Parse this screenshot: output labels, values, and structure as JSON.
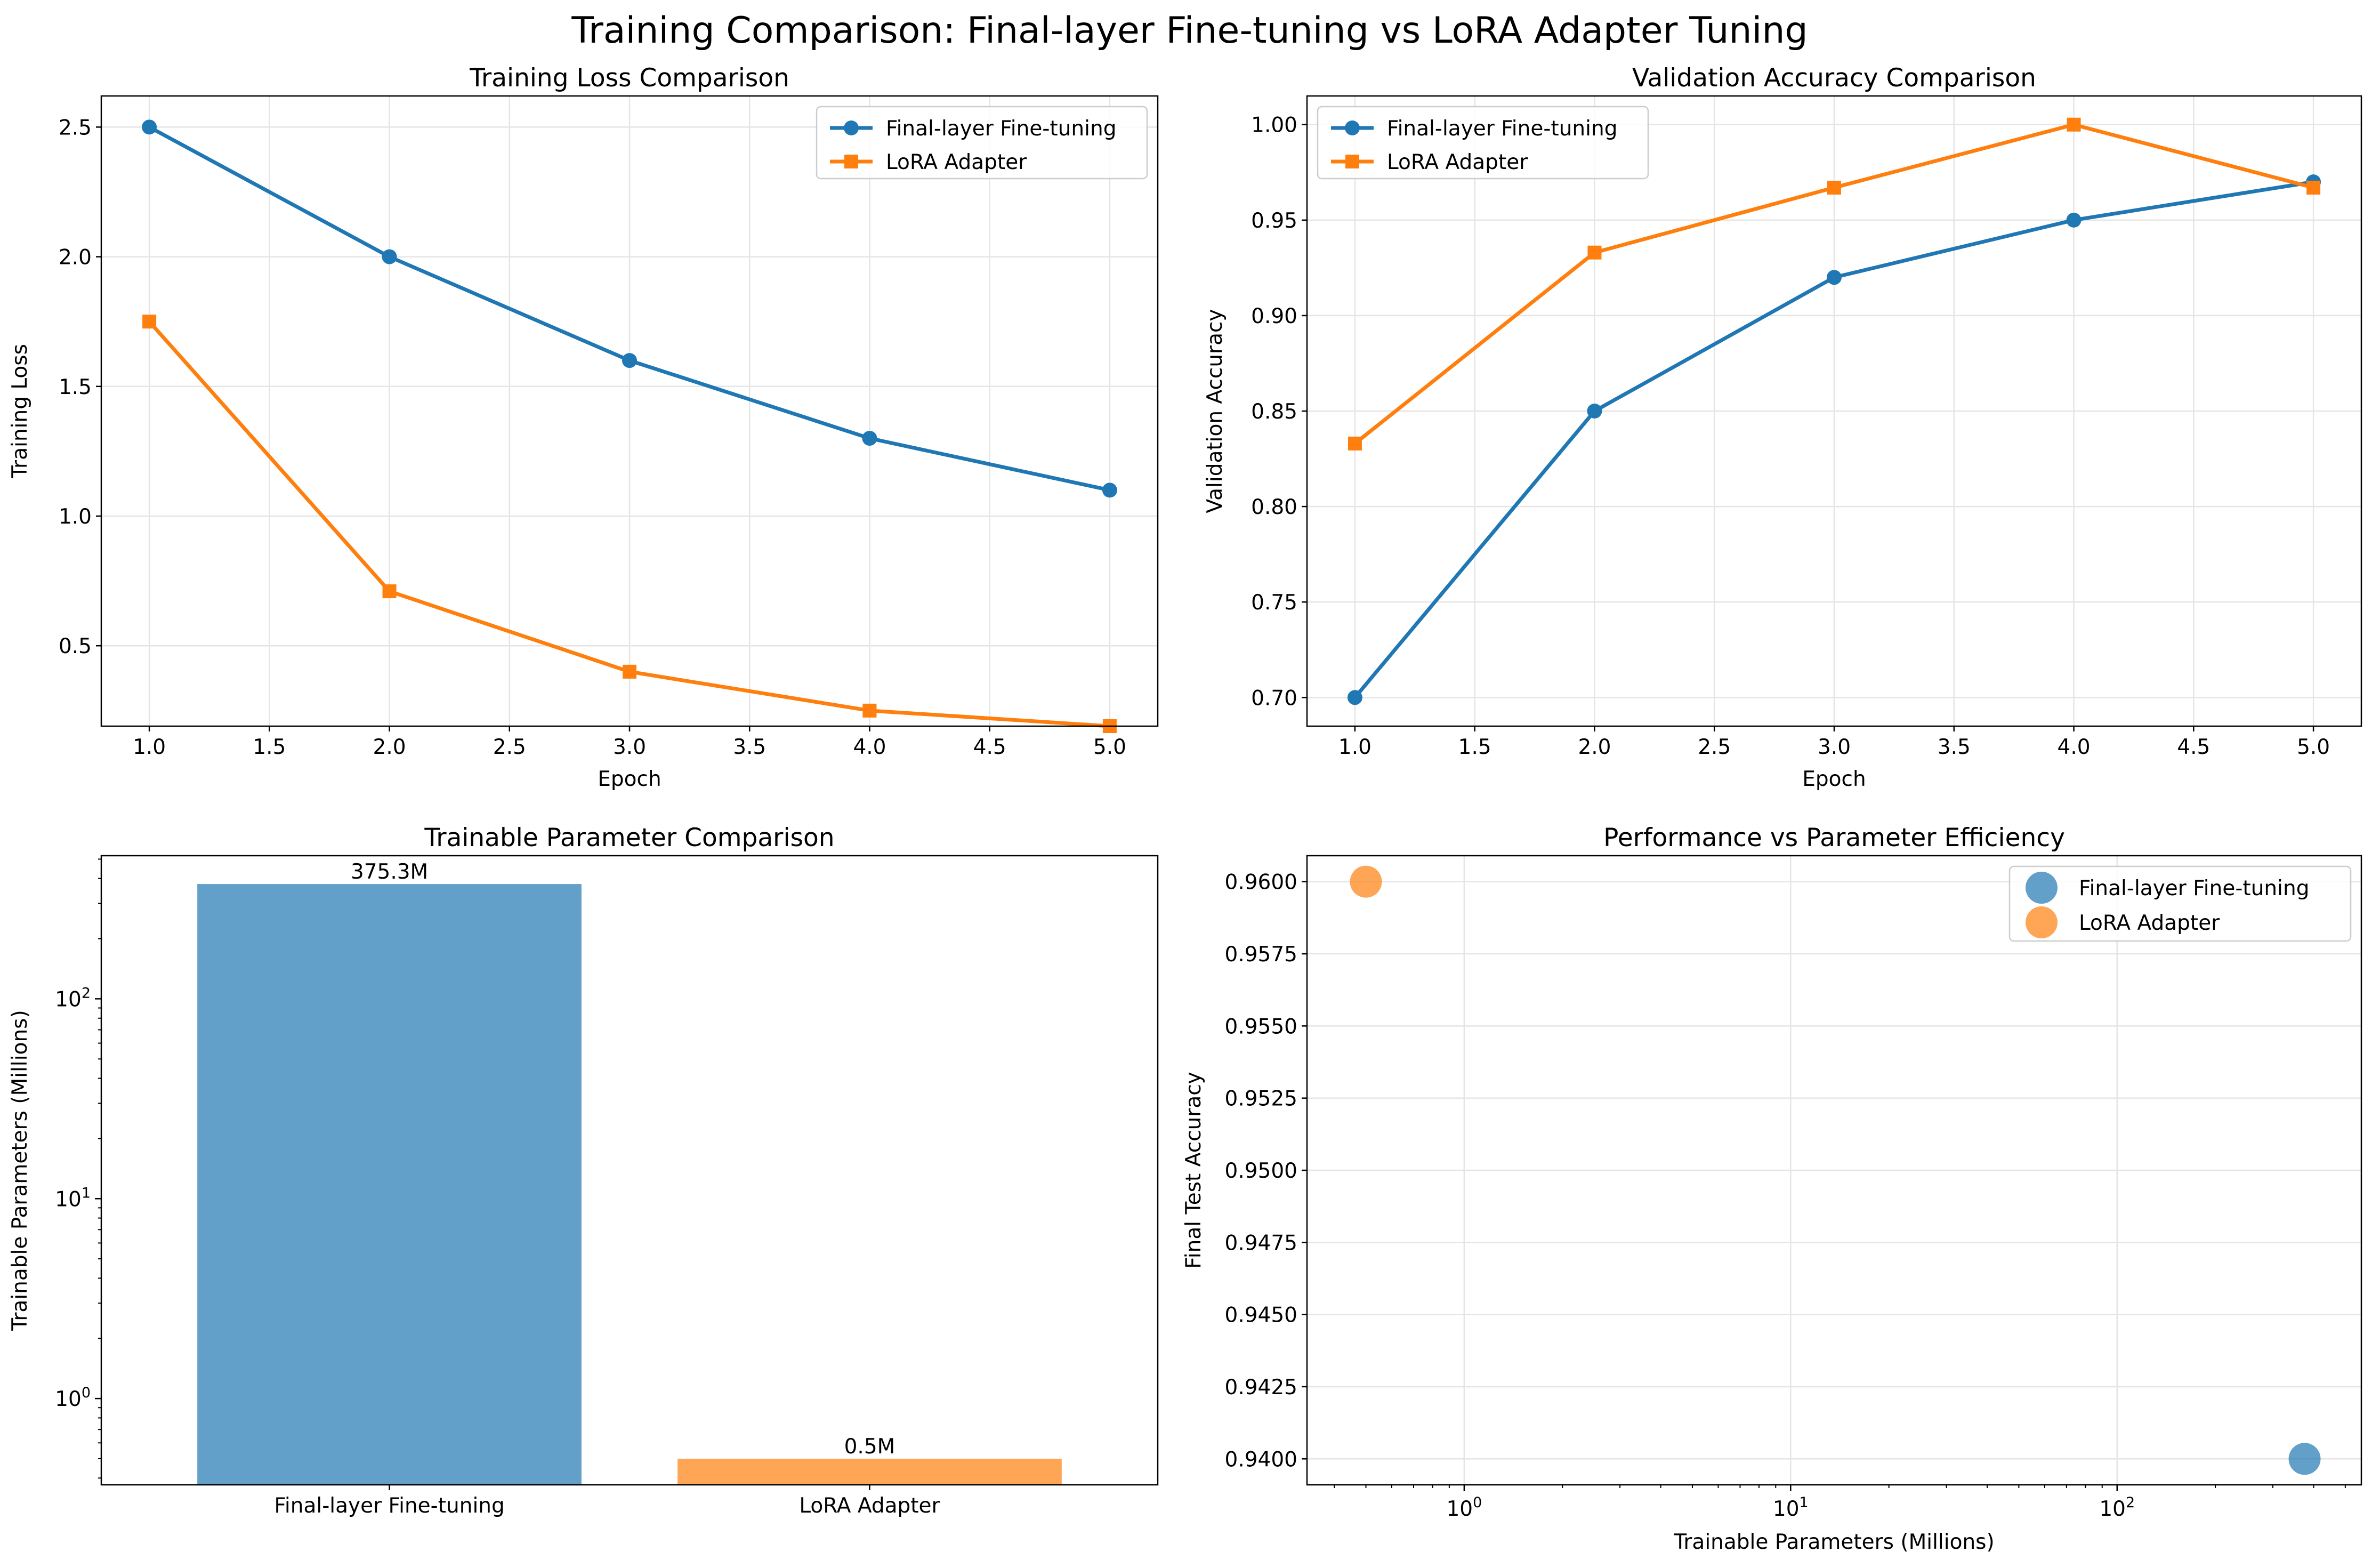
{
  "suptitle": "Training Comparison: Final-layer Fine-tuning vs LoRA Adapter Tuning",
  "colors": {
    "final": "#1f77b4",
    "lora": "#ff7f0e",
    "grid": "#e5e5e5",
    "axis": "#000000"
  },
  "chart_data": [
    {
      "type": "line",
      "title": "Training Loss Comparison",
      "xlabel": "Epoch",
      "ylabel": "Training Loss",
      "x": [
        1,
        2,
        3,
        4,
        5
      ],
      "xlim": [
        0.8,
        5.2
      ],
      "ylim": [
        0.19,
        2.62
      ],
      "xticks": [
        1.0,
        1.5,
        2.0,
        2.5,
        3.0,
        3.5,
        4.0,
        4.5,
        5.0
      ],
      "xtick_labels": [
        "1.0",
        "1.5",
        "2.0",
        "2.5",
        "3.0",
        "3.5",
        "4.0",
        "4.5",
        "5.0"
      ],
      "yticks": [
        0.5,
        1.0,
        1.5,
        2.0,
        2.5
      ],
      "ytick_labels": [
        "0.5",
        "1.0",
        "1.5",
        "2.0",
        "2.5"
      ],
      "grid": true,
      "legend_position": "top-right",
      "series": [
        {
          "name": "Final-layer Fine-tuning",
          "marker": "circle",
          "color": "#1f77b4",
          "values": [
            2.5,
            2.0,
            1.6,
            1.3,
            1.1
          ]
        },
        {
          "name": "LoRA Adapter",
          "marker": "square",
          "color": "#ff7f0e",
          "values": [
            1.75,
            0.71,
            0.4,
            0.25,
            0.19
          ]
        }
      ]
    },
    {
      "type": "line",
      "title": "Validation Accuracy Comparison",
      "xlabel": "Epoch",
      "ylabel": "Validation Accuracy",
      "x": [
        1,
        2,
        3,
        4,
        5
      ],
      "xlim": [
        0.8,
        5.2
      ],
      "ylim": [
        0.685,
        1.015
      ],
      "xticks": [
        1.0,
        1.5,
        2.0,
        2.5,
        3.0,
        3.5,
        4.0,
        4.5,
        5.0
      ],
      "xtick_labels": [
        "1.0",
        "1.5",
        "2.0",
        "2.5",
        "3.0",
        "3.5",
        "4.0",
        "4.5",
        "5.0"
      ],
      "yticks": [
        0.7,
        0.75,
        0.8,
        0.85,
        0.9,
        0.95,
        1.0
      ],
      "ytick_labels": [
        "0.70",
        "0.75",
        "0.80",
        "0.85",
        "0.90",
        "0.95",
        "1.00"
      ],
      "grid": true,
      "legend_position": "top-left",
      "series": [
        {
          "name": "Final-layer Fine-tuning",
          "marker": "circle",
          "color": "#1f77b4",
          "values": [
            0.7,
            0.85,
            0.92,
            0.95,
            0.97
          ]
        },
        {
          "name": "LoRA Adapter",
          "marker": "square",
          "color": "#ff7f0e",
          "values": [
            0.833,
            0.933,
            0.967,
            1.0,
            0.967
          ]
        }
      ]
    },
    {
      "type": "bar",
      "title": "Trainable Parameter Comparison",
      "xlabel": "",
      "ylabel": "Trainable Parameters (Millions)",
      "y_scale": "log",
      "categories": [
        "Final-layer Fine-tuning",
        "LoRA Adapter"
      ],
      "values": [
        375.3,
        0.5
      ],
      "bar_labels": [
        "375.3M",
        "0.5M"
      ],
      "bar_colors": [
        "#1f77b4",
        "#ff7f0e"
      ],
      "ylim": [
        0.37,
        520
      ],
      "yticks": [
        1,
        10,
        100
      ],
      "ytick_base": "10",
      "ytick_exponents": [
        "0",
        "1",
        "2"
      ],
      "grid": false
    },
    {
      "type": "scatter",
      "title": "Performance vs Parameter Efficiency",
      "xlabel": "Trainable Parameters (Millions)",
      "ylabel": "Final Test Accuracy",
      "x_scale": "log",
      "xlim": [
        0.33,
        560
      ],
      "ylim": [
        0.9391,
        0.9609
      ],
      "xticks": [
        1,
        10,
        100
      ],
      "xtick_base": "10",
      "xtick_exponents": [
        "0",
        "1",
        "2"
      ],
      "yticks": [
        0.94,
        0.9425,
        0.945,
        0.9475,
        0.95,
        0.9525,
        0.955,
        0.9575,
        0.96
      ],
      "ytick_labels": [
        "0.9400",
        "0.9425",
        "0.9450",
        "0.9475",
        "0.9500",
        "0.9525",
        "0.9550",
        "0.9575",
        "0.9600"
      ],
      "grid": true,
      "legend_position": "top-right",
      "series": [
        {
          "name": "Final-layer Fine-tuning",
          "color": "#1f77b4",
          "x": [
            375.3
          ],
          "y": [
            0.94
          ]
        },
        {
          "name": "LoRA Adapter",
          "color": "#ff7f0e",
          "x": [
            0.5
          ],
          "y": [
            0.96
          ]
        }
      ]
    }
  ]
}
